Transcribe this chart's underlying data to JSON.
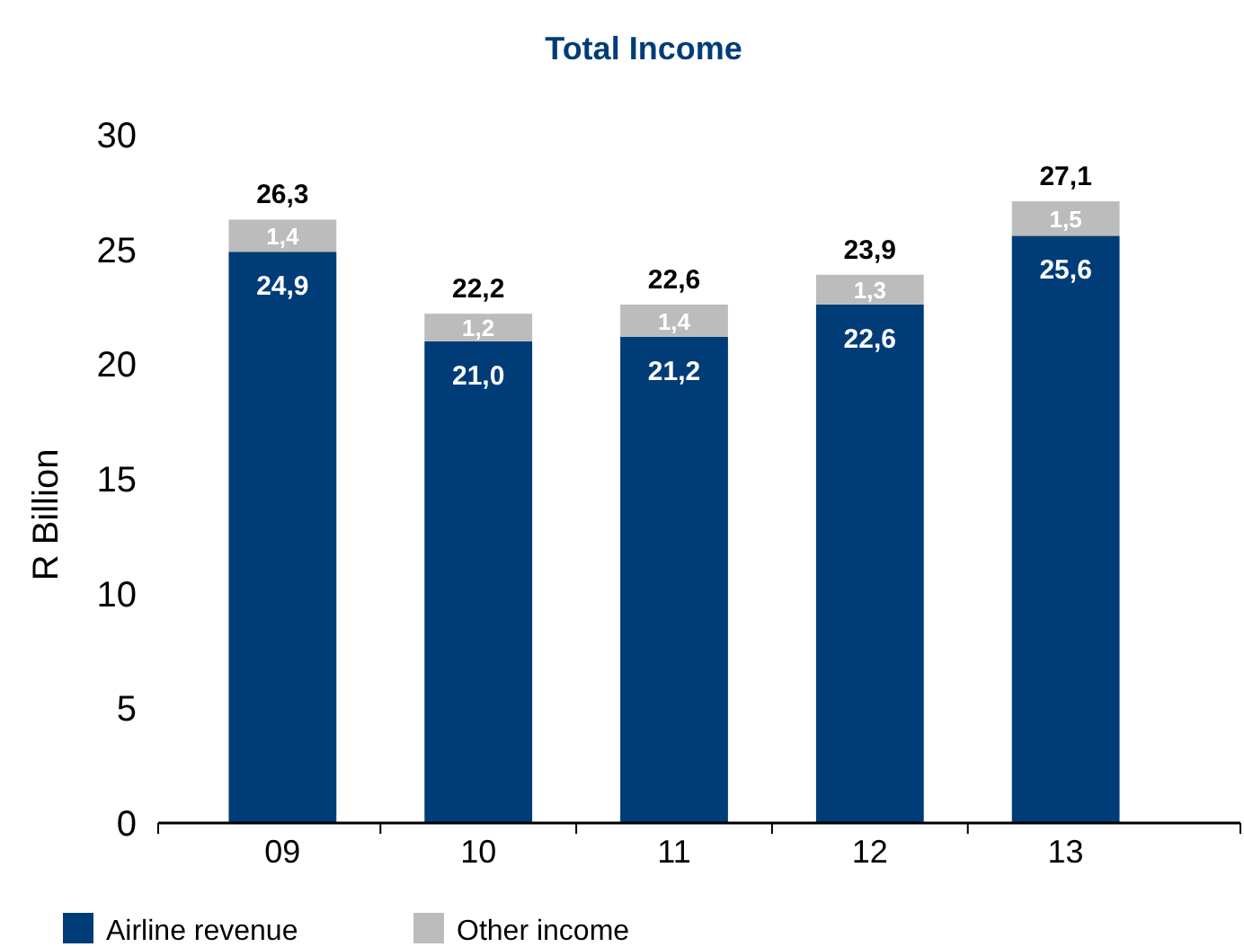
{
  "chart_data": {
    "type": "bar",
    "title": "Total Income",
    "ylabel": "R Billion",
    "categories": [
      "09",
      "10",
      "11",
      "12",
      "13"
    ],
    "stacked": true,
    "ylim": [
      0,
      30
    ],
    "yticks": [
      0,
      5,
      10,
      15,
      20,
      25,
      30
    ],
    "grid": false,
    "legend": "bottom left",
    "series": [
      {
        "name": "Airline revenue",
        "color": "#003c78",
        "values": [
          24.9,
          21.0,
          21.2,
          22.6,
          25.6
        ],
        "value_labels": [
          "24,9",
          "21,0",
          "21,2",
          "22,6",
          "25,6"
        ]
      },
      {
        "name": "Other income",
        "color": "#bcbcbc",
        "values": [
          1.4,
          1.2,
          1.4,
          1.3,
          1.5
        ],
        "value_labels": [
          "1,4",
          "1,2",
          "1,4",
          "1,3",
          "1,5"
        ]
      }
    ],
    "totals": [
      "26,3",
      "22,2",
      "22,6",
      "23,9",
      "27,1"
    ]
  }
}
